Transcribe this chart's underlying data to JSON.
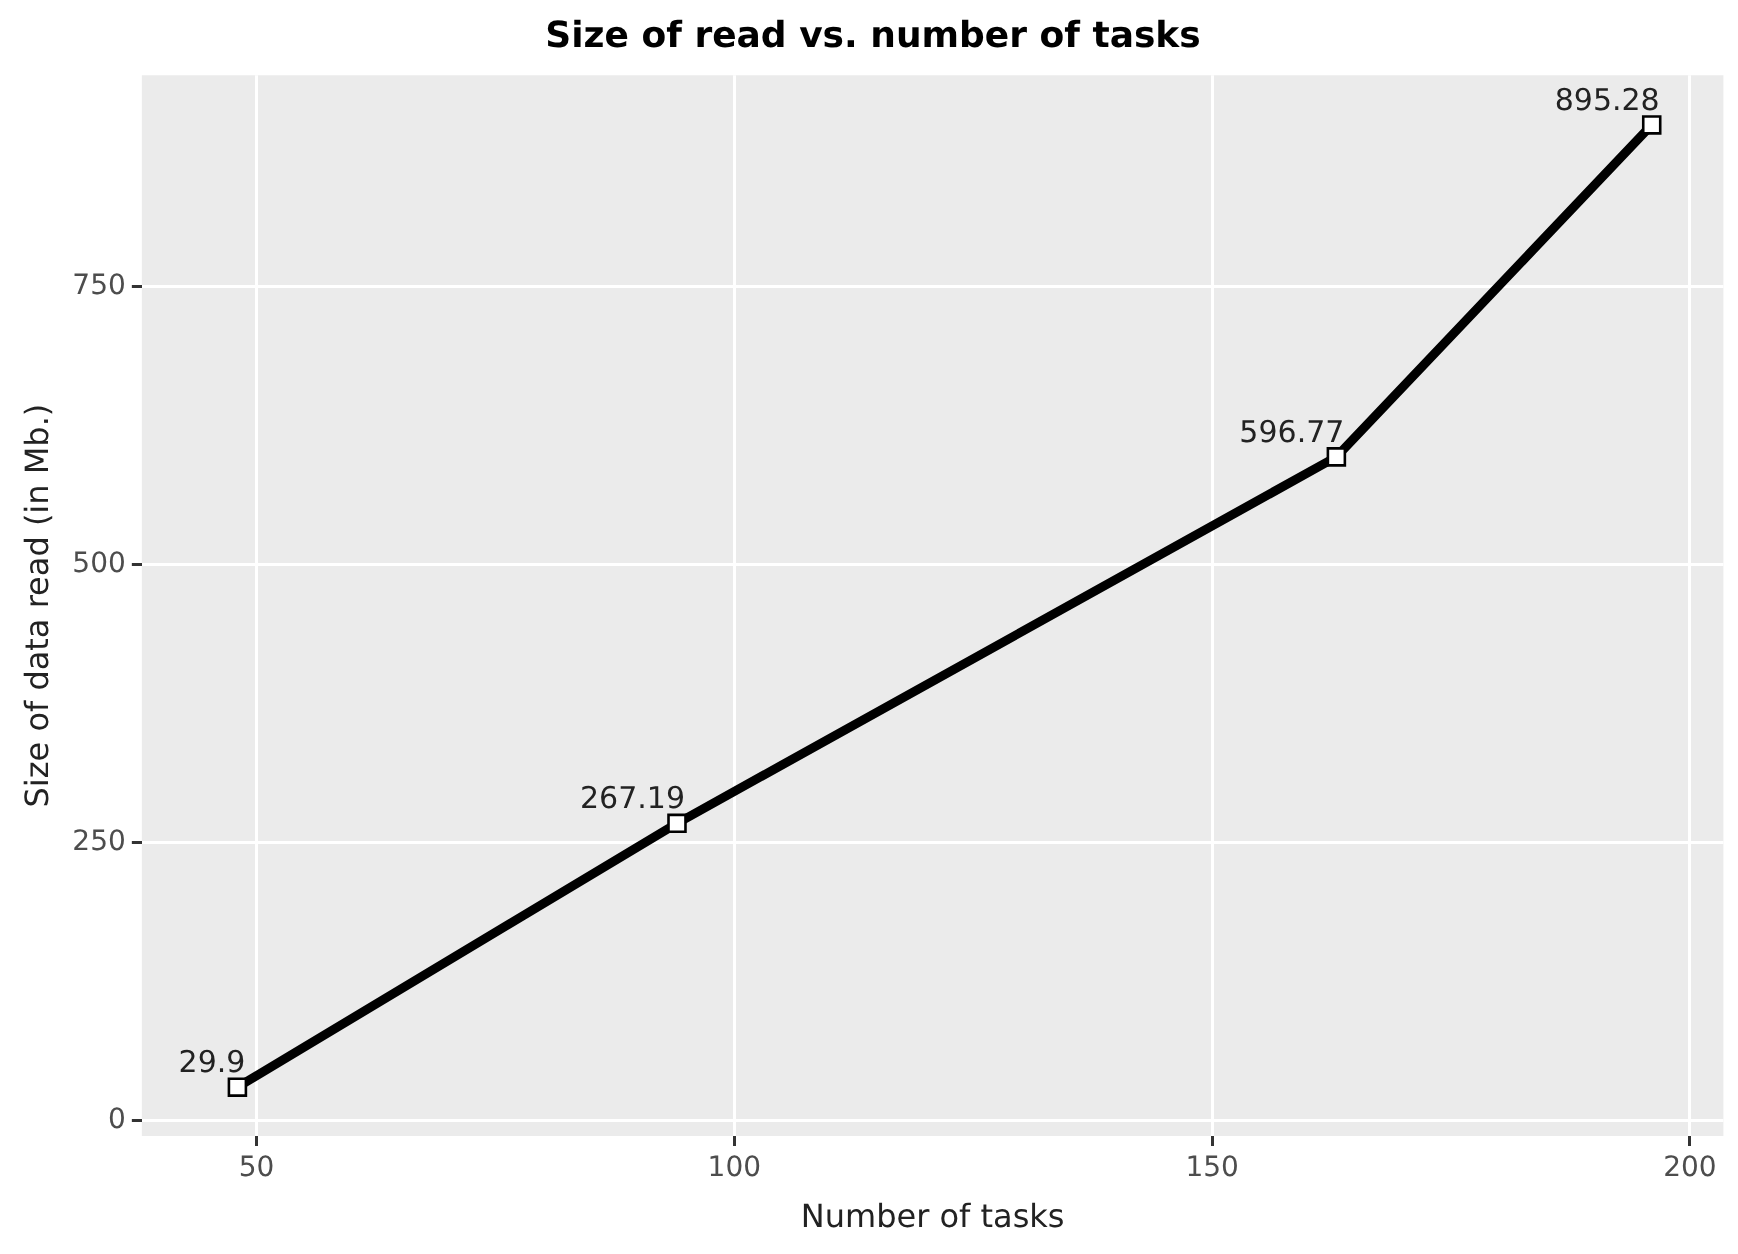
{
  "chart_data": {
    "type": "line",
    "title": "Size of read vs. number of tasks",
    "xlabel": "Number of tasks",
    "ylabel": "Size of data read (in Mb.)",
    "x": [
      48,
      94,
      163,
      196
    ],
    "series": [
      {
        "color": "#000000",
        "values": [
          29.9,
          267.19,
          596.77,
          895.28
        ]
      }
    ],
    "xlim": [
      38,
      203.5
    ],
    "xticks": [
      50,
      100,
      150,
      200
    ],
    "ylim": [
      -14,
      940
    ],
    "yticks": [
      0,
      250,
      500,
      750
    ],
    "grid": true,
    "legend": false,
    "marker": "square",
    "line_style": "solid",
    "data_labels": true
  }
}
